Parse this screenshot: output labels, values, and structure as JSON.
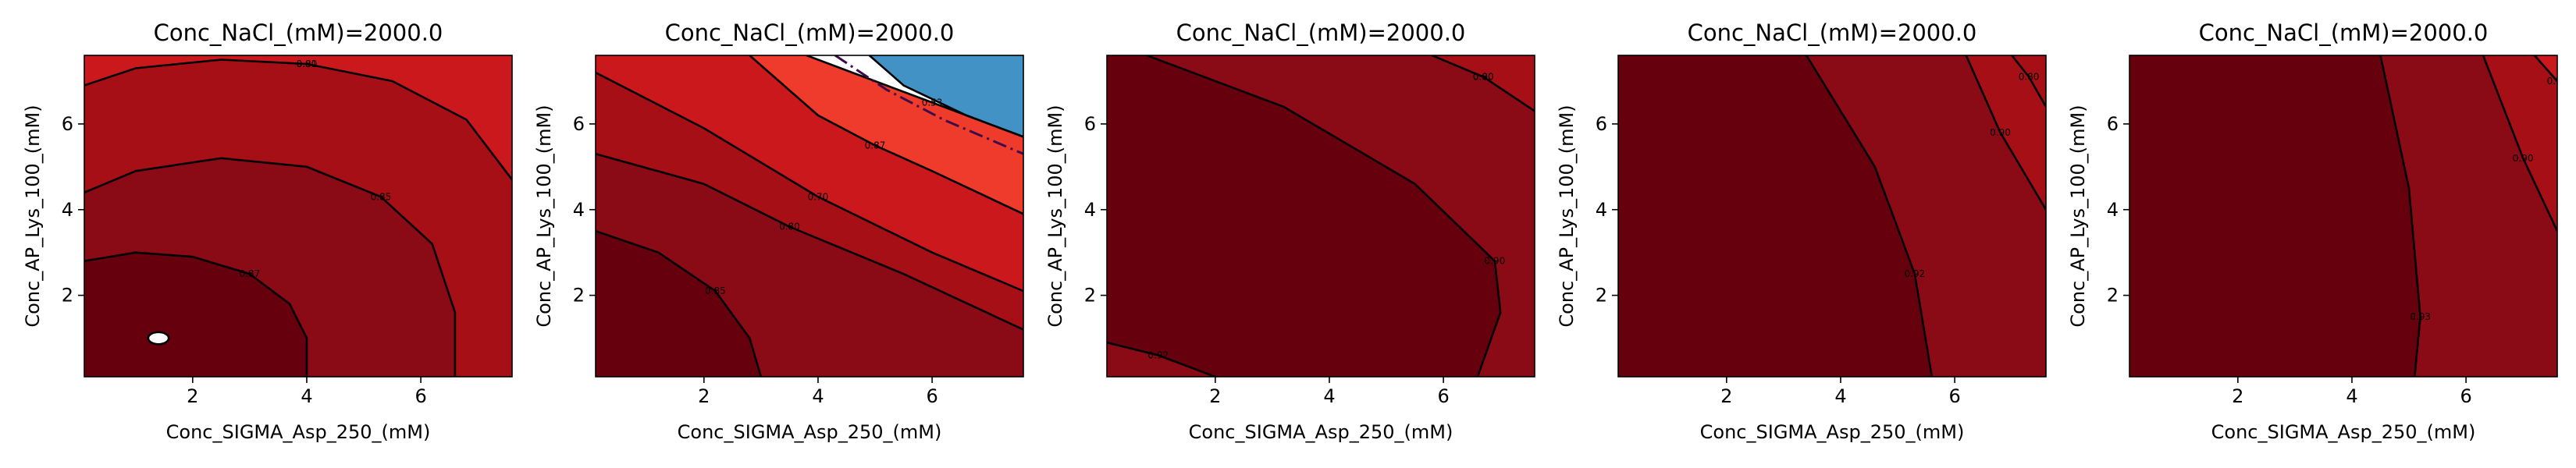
{
  "colors": {
    "level_0_91_up": "#67000d",
    "level_0_88_0_91": "#8a0a16",
    "level_0_85_0_88": "#a50f15",
    "level_0_80_0_85": "#cb181d",
    "level_0_75_0_80": "#ef3b2c",
    "level_0_60_0_75": "#ffffff",
    "level_below_0_60": "#4292c6",
    "contour_line": "#000000",
    "dashdot_line": "#3f0a4a"
  },
  "chart_data": [
    {
      "type": "contour",
      "title": "Conc_NaCl_(mM)=2000.0",
      "xlabel": "Conc_SIGMA_Asp_250_(mM)",
      "ylabel": "Conc_AP_Lys_100_(mM)",
      "xlim": [
        0.1,
        7.6
      ],
      "ylim": [
        0.1,
        7.6
      ],
      "xticks": [
        "2",
        "4",
        "6"
      ],
      "yticks": [
        "2",
        "4",
        "6"
      ],
      "contour_labels": [
        "0.80",
        "0.85",
        "0.87",
        "0.91"
      ],
      "regions": [
        {
          "color": "level_0_80_0_85",
          "boundary": []
        },
        {
          "color": "level_0_85_0_88",
          "boundary": [
            [
              0.1,
              6.9
            ],
            [
              1,
              7.3
            ],
            [
              2.5,
              7.5
            ],
            [
              4,
              7.4
            ],
            [
              5.5,
              7.0
            ],
            [
              6.8,
              6.1
            ],
            [
              7.6,
              4.7
            ],
            [
              7.6,
              0.1
            ],
            [
              0.1,
              0.1
            ]
          ]
        },
        {
          "color": "level_0_88_0_91",
          "boundary": [
            [
              0.1,
              4.4
            ],
            [
              1,
              4.9
            ],
            [
              2.5,
              5.2
            ],
            [
              4,
              5.0
            ],
            [
              5.3,
              4.3
            ],
            [
              6.2,
              3.2
            ],
            [
              6.6,
              1.6
            ],
            [
              6.6,
              0.1
            ],
            [
              0.1,
              0.1
            ]
          ]
        },
        {
          "color": "level_0_91_up",
          "boundary": [
            [
              0.1,
              2.8
            ],
            [
              1,
              3.0
            ],
            [
              2,
              2.9
            ],
            [
              3,
              2.5
            ],
            [
              3.7,
              1.8
            ],
            [
              4.0,
              1.0
            ],
            [
              4.0,
              0.1
            ],
            [
              0.1,
              0.1
            ]
          ]
        }
      ],
      "lines": [
        {
          "points": [
            [
              0.1,
              6.9
            ],
            [
              1,
              7.3
            ],
            [
              2.5,
              7.5
            ],
            [
              4,
              7.4
            ],
            [
              5.5,
              7.0
            ],
            [
              6.8,
              6.1
            ],
            [
              7.6,
              4.7
            ]
          ]
        },
        {
          "points": [
            [
              0.1,
              4.4
            ],
            [
              1,
              4.9
            ],
            [
              2.5,
              5.2
            ],
            [
              4,
              5.0
            ],
            [
              5.3,
              4.3
            ],
            [
              6.2,
              3.2
            ],
            [
              6.6,
              1.6
            ],
            [
              6.6,
              0.1
            ]
          ]
        },
        {
          "points": [
            [
              0.1,
              2.8
            ],
            [
              1,
              3.0
            ],
            [
              2,
              2.9
            ],
            [
              3,
              2.5
            ],
            [
              3.7,
              1.8
            ],
            [
              4.0,
              1.0
            ],
            [
              4.0,
              0.1
            ]
          ]
        }
      ],
      "ellipses": [
        {
          "cx": 1.4,
          "cy": 1.0,
          "rx": 0.18,
          "ry": 0.14
        }
      ]
    },
    {
      "type": "contour",
      "title": "Conc_NaCl_(mM)=2000.0",
      "xlabel": "Conc_SIGMA_Asp_250_(mM)",
      "ylabel": "Conc_AP_Lys_100_(mM)",
      "xlim": [
        0.1,
        7.6
      ],
      "ylim": [
        0.1,
        7.6
      ],
      "xticks": [
        "2",
        "4",
        "6"
      ],
      "yticks": [
        "2",
        "4",
        "6"
      ],
      "contour_labels": [
        "0.70",
        "0.80",
        "0.85",
        "0.87",
        "0.53"
      ],
      "regions": [
        {
          "color": "level_0_85_0_88",
          "boundary": []
        },
        {
          "color": "level_0_80_0_85",
          "boundary": [
            [
              0.1,
              7.6
            ],
            [
              7.6,
              7.6
            ],
            [
              7.6,
              2.1
            ],
            [
              6,
              3.0
            ],
            [
              4,
              4.3
            ],
            [
              2,
              5.9
            ],
            [
              0.1,
              7.2
            ]
          ]
        },
        {
          "color": "level_0_75_0_80",
          "boundary": [
            [
              4.0,
              7.6
            ],
            [
              7.6,
              7.6
            ],
            [
              7.6,
              3.9
            ],
            [
              6,
              4.9
            ],
            [
              5,
              5.5
            ],
            [
              4,
              6.2
            ],
            [
              2.8,
              7.6
            ]
          ]
        },
        {
          "color": "level_0_60_0_75",
          "boundary": [
            [
              4.0,
              7.6
            ],
            [
              7.6,
              7.6
            ],
            [
              7.6,
              5.7
            ],
            [
              6,
              6.5
            ],
            [
              5,
              7.0
            ],
            [
              3.8,
              7.6
            ]
          ]
        },
        {
          "color": "level_below_0_60",
          "boundary": [
            [
              4.2,
              7.6
            ],
            [
              7.6,
              7.6
            ],
            [
              7.6,
              5.7
            ],
            [
              6.6,
              6.2
            ],
            [
              5.5,
              6.9
            ],
            [
              4.9,
              7.6
            ]
          ]
        },
        {
          "color": "level_0_88_0_91",
          "boundary": [
            [
              0.1,
              5.3
            ],
            [
              2,
              4.6
            ],
            [
              3.5,
              3.6
            ],
            [
              5.5,
              2.5
            ],
            [
              7.6,
              1.2
            ],
            [
              7.6,
              0.1
            ],
            [
              0.1,
              0.1
            ]
          ]
        },
        {
          "color": "level_0_91_up",
          "boundary": [
            [
              0.1,
              3.5
            ],
            [
              1.2,
              3.0
            ],
            [
              2.2,
              2.1
            ],
            [
              2.8,
              1.0
            ],
            [
              3.0,
              0.1
            ],
            [
              0.1,
              0.1
            ]
          ]
        }
      ],
      "lines": [
        {
          "points": [
            [
              0.1,
              7.2
            ],
            [
              2,
              5.9
            ],
            [
              4,
              4.3
            ],
            [
              6,
              3.0
            ],
            [
              7.6,
              2.1
            ]
          ]
        },
        {
          "points": [
            [
              0.1,
              5.3
            ],
            [
              2,
              4.6
            ],
            [
              3.5,
              3.6
            ],
            [
              5.5,
              2.5
            ],
            [
              7.6,
              1.2
            ]
          ]
        },
        {
          "points": [
            [
              0.1,
              3.5
            ],
            [
              1.2,
              3.0
            ],
            [
              2.2,
              2.1
            ],
            [
              2.8,
              1.0
            ],
            [
              3.0,
              0.1
            ]
          ]
        },
        {
          "points": [
            [
              2.8,
              7.6
            ],
            [
              4,
              6.2
            ],
            [
              5,
              5.5
            ],
            [
              6,
              4.9
            ],
            [
              7.6,
              3.9
            ]
          ]
        },
        {
          "points": [
            [
              3.8,
              7.6
            ],
            [
              5,
              7.0
            ],
            [
              6,
              6.5
            ],
            [
              7.6,
              5.7
            ]
          ]
        },
        {
          "points": [
            [
              4.9,
              7.6
            ],
            [
              5.5,
              6.9
            ],
            [
              6.6,
              6.2
            ],
            [
              7.6,
              5.7
            ]
          ]
        },
        {
          "points": [
            [
              4.3,
              7.6
            ],
            [
              5.2,
              6.8
            ],
            [
              6.2,
              6.1
            ],
            [
              7.6,
              5.3
            ]
          ],
          "dash": true
        }
      ],
      "ellipses": []
    },
    {
      "type": "contour",
      "title": "Conc_NaCl_(mM)=2000.0",
      "xlabel": "Conc_SIGMA_Asp_250_(mM)",
      "ylabel": "Conc_AP_Lys_100_(mM)",
      "xlim": [
        0.1,
        7.6
      ],
      "ylim": [
        0.1,
        7.6
      ],
      "xticks": [
        "2",
        "4",
        "6"
      ],
      "yticks": [
        "2",
        "4",
        "6"
      ],
      "contour_labels": [
        "0.80",
        "0.90",
        "0.92",
        "0.90"
      ],
      "regions": [
        {
          "color": "level_0_88_0_91",
          "boundary": []
        },
        {
          "color": "level_0_85_0_88",
          "boundary": [
            [
              5.8,
              7.6
            ],
            [
              7.6,
              7.6
            ],
            [
              7.6,
              6.3
            ],
            [
              6.7,
              7.1
            ]
          ]
        },
        {
          "color": "level_0_91_up",
          "boundary": [
            [
              0.1,
              7.6
            ],
            [
              0.8,
              7.6
            ],
            [
              3.2,
              6.4
            ],
            [
              5.5,
              4.6
            ],
            [
              6.9,
              2.8
            ],
            [
              7.0,
              1.6
            ],
            [
              6.6,
              0.1
            ],
            [
              2.0,
              0.1
            ],
            [
              1.0,
              0.6
            ],
            [
              0.1,
              0.9
            ]
          ]
        }
      ],
      "lines": [
        {
          "points": [
            [
              5.8,
              7.6
            ],
            [
              6.7,
              7.1
            ],
            [
              7.6,
              6.3
            ]
          ]
        },
        {
          "points": [
            [
              0.8,
              7.6
            ],
            [
              3.2,
              6.4
            ],
            [
              5.5,
              4.6
            ],
            [
              6.9,
              2.8
            ],
            [
              7.0,
              1.6
            ],
            [
              6.6,
              0.1
            ]
          ]
        },
        {
          "points": [
            [
              0.1,
              0.9
            ],
            [
              1.0,
              0.6
            ],
            [
              2.0,
              0.1
            ]
          ]
        }
      ],
      "ellipses": []
    },
    {
      "type": "contour",
      "title": "Conc_NaCl_(mM)=2000.0",
      "xlabel": "Conc_SIGMA_Asp_250_(mM)",
      "ylabel": "Conc_AP_Lys_100_(mM)",
      "xlim": [
        0.1,
        7.6
      ],
      "ylim": [
        0.1,
        7.6
      ],
      "xticks": [
        "2",
        "4",
        "6"
      ],
      "yticks": [
        "2",
        "4",
        "6"
      ],
      "contour_labels": [
        "0.92",
        "0.90",
        "0.80"
      ],
      "regions": [
        {
          "color": "level_0_91_up",
          "boundary": []
        },
        {
          "color": "level_0_88_0_91",
          "boundary": [
            [
              3.4,
              7.6
            ],
            [
              7.6,
              7.6
            ],
            [
              7.6,
              0.1
            ],
            [
              5.6,
              0.1
            ],
            [
              5.3,
              2.5
            ],
            [
              4.6,
              5.0
            ]
          ]
        },
        {
          "color": "level_0_85_0_88",
          "boundary": [
            [
              6.2,
              7.6
            ],
            [
              7.6,
              7.6
            ],
            [
              7.6,
              4.0
            ],
            [
              6.8,
              5.8
            ]
          ]
        }
      ],
      "lines": [
        {
          "points": [
            [
              3.4,
              7.6
            ],
            [
              4.6,
              5.0
            ],
            [
              5.3,
              2.5
            ],
            [
              5.6,
              0.1
            ]
          ]
        },
        {
          "points": [
            [
              6.2,
              7.6
            ],
            [
              6.8,
              5.8
            ],
            [
              7.6,
              4.0
            ]
          ]
        },
        {
          "points": [
            [
              7.0,
              7.6
            ],
            [
              7.3,
              7.1
            ],
            [
              7.6,
              6.4
            ]
          ]
        }
      ],
      "ellipses": []
    },
    {
      "type": "contour",
      "title": "Conc_NaCl_(mM)=2000.0",
      "xlabel": "Conc_SIGMA_Asp_250_(mM)",
      "ylabel": "Conc_AP_Lys_100_(mM)",
      "xlim": [
        0.1,
        7.6
      ],
      "ylim": [
        0.1,
        7.6
      ],
      "xticks": [
        "2",
        "4",
        "6"
      ],
      "yticks": [
        "2",
        "4",
        "6"
      ],
      "contour_labels": [
        "0.93",
        "0.90",
        "0.80"
      ],
      "regions": [
        {
          "color": "level_0_91_up",
          "boundary": []
        },
        {
          "color": "level_0_88_0_91",
          "boundary": [
            [
              4.5,
              7.6
            ],
            [
              7.6,
              7.6
            ],
            [
              7.6,
              0.1
            ],
            [
              5.1,
              0.1
            ],
            [
              5.2,
              1.5
            ],
            [
              5.0,
              4.5
            ]
          ]
        },
        {
          "color": "level_0_85_0_88",
          "boundary": [
            [
              6.3,
              7.6
            ],
            [
              7.6,
              7.6
            ],
            [
              7.6,
              3.5
            ],
            [
              7.0,
              5.2
            ]
          ]
        },
        {
          "color": "level_0_80_0_85",
          "boundary": [
            [
              7.2,
              7.6
            ],
            [
              7.6,
              7.6
            ],
            [
              7.6,
              7.0
            ]
          ]
        }
      ],
      "lines": [
        {
          "points": [
            [
              4.5,
              7.6
            ],
            [
              5.0,
              4.5
            ],
            [
              5.2,
              1.5
            ],
            [
              5.1,
              0.1
            ]
          ]
        },
        {
          "points": [
            [
              6.3,
              7.6
            ],
            [
              7.0,
              5.2
            ],
            [
              7.6,
              3.5
            ]
          ]
        },
        {
          "points": [
            [
              7.2,
              7.6
            ],
            [
              7.6,
              7.0
            ]
          ]
        }
      ],
      "ellipses": []
    }
  ]
}
